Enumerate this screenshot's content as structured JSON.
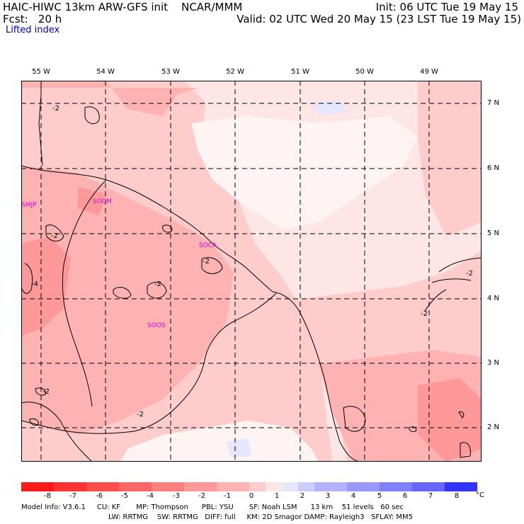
{
  "header": {
    "left_line1": "HAIC-HIWC 13km ARW-GFS init    NCAR/MMM",
    "left_line2": "Fcst:   20 h",
    "subtitle": "Lifted index",
    "right_line1": "Init: 06 UTC Tue 19 May 15",
    "right_line2": "Valid: 02 UTC Wed 20 May 15 (23 LST Tue 19 May 15)"
  },
  "longitude_labels": [
    "55 W",
    "54 W",
    "53 W",
    "52 W",
    "51 W",
    "50 W",
    "49 W"
  ],
  "latitude_labels": [
    "7 N",
    "6 N",
    "5 N",
    "4 N",
    "3 N",
    "2 N"
  ],
  "stations": [
    "SMJP",
    "SOCM",
    "SOCA",
    "SOOS"
  ],
  "contour_labels": [
    "-2",
    "-2",
    "-2",
    "-2",
    "-4",
    "-2",
    "-2",
    "-2",
    "-2"
  ],
  "colorbar": {
    "ticks": [
      "-8",
      "-7",
      "-6",
      "-5",
      "-4",
      "-3",
      "-2",
      "-1",
      "0",
      "1",
      "2",
      "3",
      "4",
      "5",
      "6",
      "7",
      "8"
    ],
    "unit": "°C",
    "colors": [
      "#ff1a1a",
      "#ff3333",
      "#ff4d4d",
      "#ff6666",
      "#ff7f7f",
      "#ff9999",
      "#ffb2b2",
      "#ffcccc",
      "#ffe6e6",
      "#e6e6ff",
      "#ccccff",
      "#b2b2ff",
      "#9999ff",
      "#7f7fff",
      "#6666ff",
      "#3333ff",
      "#0000ff"
    ]
  },
  "footer": {
    "line1": "Model Info: V3.6.1     CU: KF       MP: Thompson      PBL: YSU       SF: Noah LSM      13 km    51 levels   60 sec",
    "line2": "LW: RRTMG    SW: RRTMG   DIFF: full     KM: 2D Smagor DAMP: Rayleigh3   SFLAY: MM5"
  }
}
